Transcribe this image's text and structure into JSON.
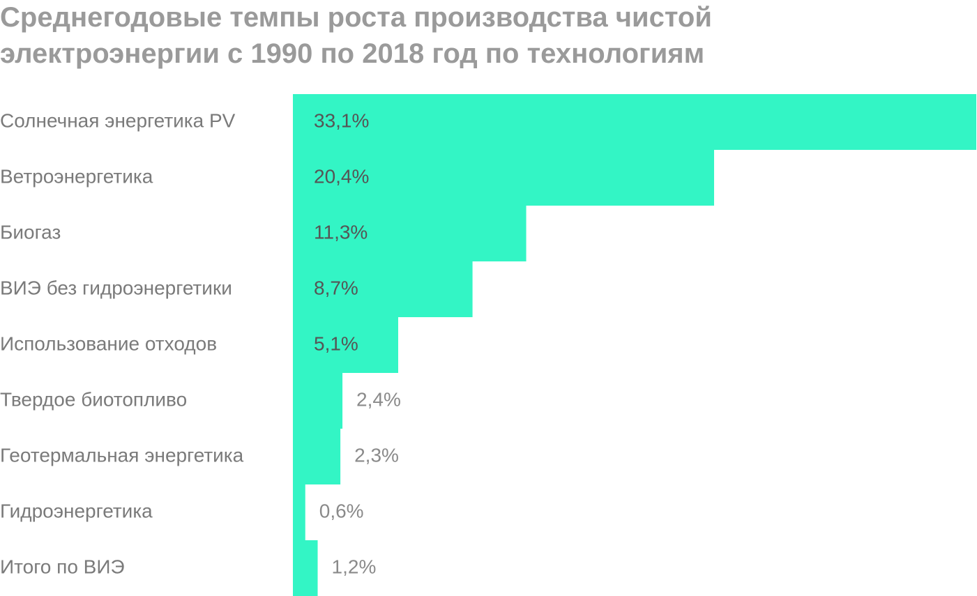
{
  "chart_data": {
    "type": "barh",
    "title": [
      "Среднегодовые темпы роста производства чистой",
      "электроэнергии с 1990 по 2018 год по технологиям"
    ],
    "categories": [
      "Солнечная энергетика PV",
      "Ветроэнергетика",
      "Биогаз",
      "ВИЭ без гидроэнергетики",
      "Использование отходов",
      "Твердое биотопливо",
      "Геотермальная энергетика",
      "Гидроэнергетика",
      "Итого по ВИЭ"
    ],
    "values": [
      33.1,
      20.4,
      11.3,
      8.7,
      5.1,
      2.4,
      2.3,
      0.6,
      1.2
    ],
    "value_labels": [
      "33,1%",
      "20,4%",
      "11,3%",
      "8,7%",
      "5,1%",
      "2,4%",
      "2,3%",
      "0,6%",
      "1,2%"
    ],
    "color": "#33f5c5",
    "xlim": [
      0,
      33.1
    ]
  }
}
